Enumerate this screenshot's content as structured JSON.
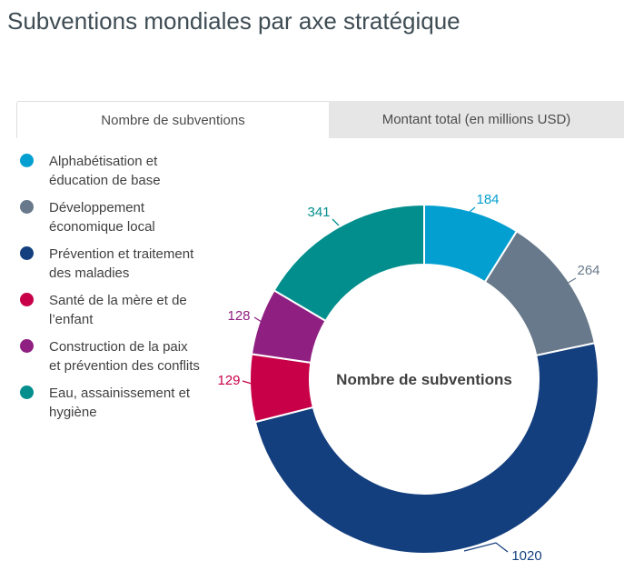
{
  "page_title": "Subventions mondiales par axe stratégique",
  "tabs": {
    "count_tab": "Nombre de subventions",
    "amount_tab": "Montant total (en millions USD)"
  },
  "chart_data": {
    "type": "pie",
    "donut": true,
    "start_angle": "top",
    "direction": "clockwise",
    "legend_position": "left",
    "center_label": "Nombre de subventions",
    "series": [
      {
        "label": "Alphabétisation et éducation de base",
        "value": 184,
        "color": "#049fd1"
      },
      {
        "label": "Développement économique local",
        "value": 264,
        "color": "#68798b"
      },
      {
        "label": "Prévention et traitement des maladies",
        "value": 1020,
        "color": "#143f7e"
      },
      {
        "label": "Santé de la mère et de l’enfant",
        "value": 129,
        "color": "#c80048"
      },
      {
        "label": "Construction de la paix et prévention des conflits",
        "value": 128,
        "color": "#8f2082"
      },
      {
        "label": "Eau, assainissement et hygiène",
        "value": 341,
        "color": "#028e8d"
      }
    ]
  }
}
